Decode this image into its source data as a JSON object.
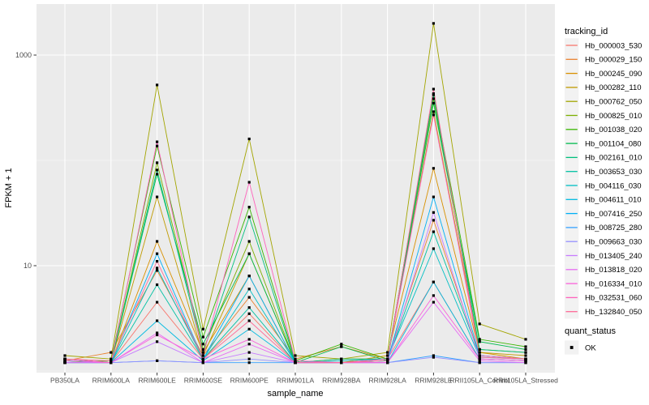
{
  "chart_data": {
    "type": "line",
    "title": "",
    "xlabel": "sample_name",
    "ylabel": "FPKM + 1",
    "y_scale": "log10",
    "ylim": [
      1,
      3000
    ],
    "grid": true,
    "panel_bg": "#EBEBEB",
    "grid_color": "#FFFFFF",
    "point_color": "#000000",
    "legend_position": "right",
    "legend_title": "tracking_id",
    "point_legend": {
      "title": "quant_status",
      "items": [
        {
          "label": "OK",
          "shape": "square",
          "color": "#000000"
        }
      ]
    },
    "y_ticks": [
      {
        "label": "1000",
        "value": 1000
      },
      {
        "label": "10",
        "value": 10
      }
    ],
    "y_minor": [
      100,
      1
    ],
    "x": [
      "PB350LA",
      "RRIM600LA",
      "RRIM600LE",
      "RRIM600SE",
      "RRIM600PE",
      "RRIM901LA",
      "RRIM928BA",
      "RRIM928LA",
      "RRIM928LE",
      "RRII105LA_Control",
      "RRII105LA_Stressed"
    ],
    "series": [
      {
        "name": "Hb_000003_530",
        "color": "#F8766D",
        "values": [
          1.3,
          1.2,
          4.5,
          1.3,
          3.5,
          1.2,
          1.2,
          1.3,
          7,
          1.3,
          1.25
        ]
      },
      {
        "name": "Hb_000029_150",
        "color": "#EA8331",
        "values": [
          1.25,
          1.5,
          9,
          1.4,
          5,
          1.3,
          1.7,
          1.3,
          27,
          1.4,
          1.3
        ]
      },
      {
        "name": "Hb_000245_090",
        "color": "#D89000",
        "values": [
          1.3,
          1.2,
          17,
          1.5,
          8,
          1.2,
          1.2,
          1.4,
          84,
          1.5,
          1.3
        ]
      },
      {
        "name": "Hb_000282_110",
        "color": "#C09B00",
        "values": [
          1.2,
          1.2,
          45,
          1.4,
          13,
          1.2,
          1.3,
          1.3,
          290,
          1.5,
          1.4
        ]
      },
      {
        "name": "Hb_000762_050",
        "color": "#A3A500",
        "values": [
          1.4,
          1.3,
          520,
          2.5,
          160,
          1.4,
          1.3,
          1.5,
          2000,
          2.8,
          2.0
        ]
      },
      {
        "name": "Hb_000825_010",
        "color": "#7CAE00",
        "values": [
          1.3,
          1.2,
          95,
          1.6,
          17,
          1.2,
          1.2,
          1.3,
          385,
          1.6,
          1.5
        ]
      },
      {
        "name": "Hb_001038_020",
        "color": "#39B600",
        "values": [
          1.2,
          1.25,
          137,
          2.1,
          36,
          1.25,
          1.8,
          1.3,
          430,
          2.0,
          1.7
        ]
      },
      {
        "name": "Hb_001104_080",
        "color": "#00BB4E",
        "values": [
          1.3,
          1.2,
          74,
          1.8,
          13,
          1.2,
          1.7,
          1.25,
          350,
          1.9,
          1.6
        ]
      },
      {
        "name": "Hb_002161_010",
        "color": "#00BF7D",
        "values": [
          1.25,
          1.2,
          81,
          1.5,
          29,
          1.2,
          1.3,
          1.3,
          420,
          1.6,
          1.5
        ]
      },
      {
        "name": "Hb_003653_030",
        "color": "#00C1A3",
        "values": [
          1.2,
          1.2,
          6.6,
          1.3,
          4,
          1.2,
          1.2,
          1.25,
          21,
          1.4,
          1.3
        ]
      },
      {
        "name": "Hb_004116_030",
        "color": "#00BFC4",
        "values": [
          1.3,
          1.2,
          9.5,
          1.3,
          6,
          1.2,
          1.25,
          1.3,
          14.5,
          1.35,
          1.3
        ]
      },
      {
        "name": "Hb_004611_010",
        "color": "#00BAE0",
        "values": [
          1.2,
          1.2,
          3.0,
          1.25,
          2.5,
          1.2,
          1.2,
          1.2,
          7,
          1.3,
          1.25
        ]
      },
      {
        "name": "Hb_007416_250",
        "color": "#00B0F6",
        "values": [
          1.25,
          1.2,
          13,
          1.3,
          8,
          1.2,
          1.2,
          1.25,
          45,
          1.4,
          1.3
        ]
      },
      {
        "name": "Hb_008725_280",
        "color": "#35A2FF",
        "values": [
          1.2,
          1.2,
          1.25,
          1.2,
          1.2,
          1.2,
          1.2,
          1.2,
          1.4,
          1.2,
          1.2
        ]
      },
      {
        "name": "Hb_009663_030",
        "color": "#9590FF",
        "values": [
          1.2,
          1.2,
          1.25,
          1.2,
          1.3,
          1.2,
          1.2,
          1.2,
          1.35,
          1.2,
          1.2
        ]
      },
      {
        "name": "Hb_013405_240",
        "color": "#C77CFF",
        "values": [
          1.2,
          1.2,
          1.9,
          1.2,
          1.5,
          1.2,
          1.2,
          1.2,
          32,
          1.3,
          1.25
        ]
      },
      {
        "name": "Hb_013818_020",
        "color": "#E76BF3",
        "values": [
          1.2,
          1.2,
          2.3,
          1.2,
          1.8,
          1.2,
          1.2,
          1.2,
          4.5,
          1.25,
          1.2
        ]
      },
      {
        "name": "Hb_016334_010",
        "color": "#FA62DB",
        "values": [
          1.25,
          1.2,
          2.2,
          1.3,
          2.0,
          1.2,
          1.2,
          1.2,
          5.2,
          1.3,
          1.25
        ]
      },
      {
        "name": "Hb_032531_060",
        "color": "#FF62BC",
        "values": [
          1.3,
          1.2,
          150,
          1.4,
          62,
          1.25,
          1.2,
          1.3,
          270,
          1.4,
          1.3
        ]
      },
      {
        "name": "Hb_132840_050",
        "color": "#FF6A98",
        "values": [
          1.3,
          1.25,
          11,
          1.3,
          3,
          1.2,
          1.2,
          1.25,
          475,
          1.35,
          1.3
        ]
      }
    ]
  }
}
